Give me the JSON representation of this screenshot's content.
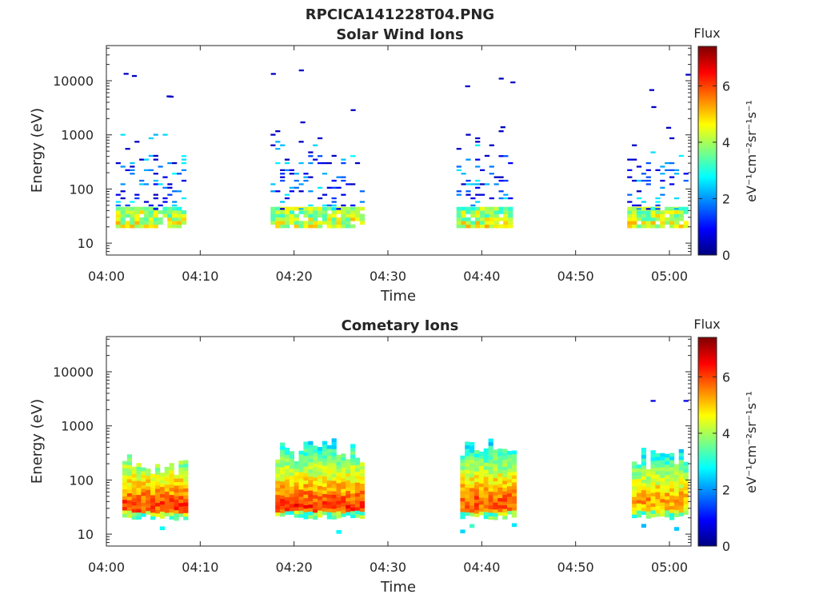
{
  "figure_title": "RPCICA141228T04.PNG",
  "colorbar_gradient": [
    "#00007f",
    "#0000ff",
    "#007fff",
    "#00ffff",
    "#7fff7f",
    "#ffff00",
    "#ff7f00",
    "#ff0000",
    "#7f0000"
  ],
  "chart_data": [
    {
      "type": "heatmap",
      "title": "Solar Wind Ions",
      "xlabel": "Time",
      "ylabel": "Energy (eV)",
      "x_ticks": [
        "04:00",
        "04:10",
        "04:20",
        "04:30",
        "04:40",
        "04:50",
        "05:00"
      ],
      "y_ticks": [
        "10",
        "100",
        "1000",
        "10000"
      ],
      "xlim_minutes": [
        0,
        62.3
      ],
      "ylim_log10": [
        0.78,
        4.65
      ],
      "y_scale": "log",
      "colorbar": {
        "title": "Flux",
        "label": "eV⁻¹cm⁻²sr⁻¹s⁻¹",
        "ticks": [
          "0",
          "2",
          "4",
          "6"
        ],
        "range": [
          0,
          7.4
        ]
      },
      "groups": [
        {
          "start_min": 1.0,
          "end_min": 8.3,
          "low_count": 16,
          "mid_count": 14,
          "sparse_count": 16
        },
        {
          "start_min": 17.5,
          "end_min": 27.3,
          "low_count": 22,
          "mid_count": 22,
          "sparse_count": 26
        },
        {
          "start_min": 37.3,
          "end_min": 43.2,
          "low_count": 16,
          "mid_count": 20,
          "sparse_count": 20
        },
        {
          "start_min": 55.5,
          "end_min": 62.0,
          "low_count": 12,
          "mid_count": 26,
          "sparse_count": 18
        }
      ],
      "peak_flux": 5.2
    },
    {
      "type": "heatmap",
      "title": "Cometary Ions",
      "xlabel": "Time",
      "ylabel": "Energy (eV)",
      "x_ticks": [
        "04:00",
        "04:10",
        "04:20",
        "04:30",
        "04:40",
        "04:50",
        "05:00"
      ],
      "y_ticks": [
        "10",
        "100",
        "1000",
        "10000"
      ],
      "xlim_minutes": [
        0,
        62.3
      ],
      "ylim_log10": [
        0.78,
        4.65
      ],
      "y_scale": "log",
      "colorbar": {
        "title": "Flux",
        "label": "eV⁻¹cm⁻²sr⁻¹s⁻¹",
        "ticks": [
          "0",
          "2",
          "4",
          "6"
        ],
        "range": [
          0,
          7.4
        ]
      },
      "groups": [
        {
          "start_min": 1.7,
          "end_min": 8.3,
          "top_log10": 2.5,
          "peak_log10": 1.5,
          "peak_flux": 6.6
        },
        {
          "start_min": 18.0,
          "end_min": 27.4,
          "top_log10": 2.75,
          "peak_log10": 1.5,
          "peak_flux": 6.7
        },
        {
          "start_min": 37.7,
          "end_min": 43.3,
          "top_log10": 2.75,
          "peak_log10": 1.55,
          "peak_flux": 6.5
        },
        {
          "start_min": 56.0,
          "end_min": 62.0,
          "top_log10": 2.6,
          "peak_log10": 1.6,
          "peak_flux": 5.9
        }
      ]
    }
  ]
}
